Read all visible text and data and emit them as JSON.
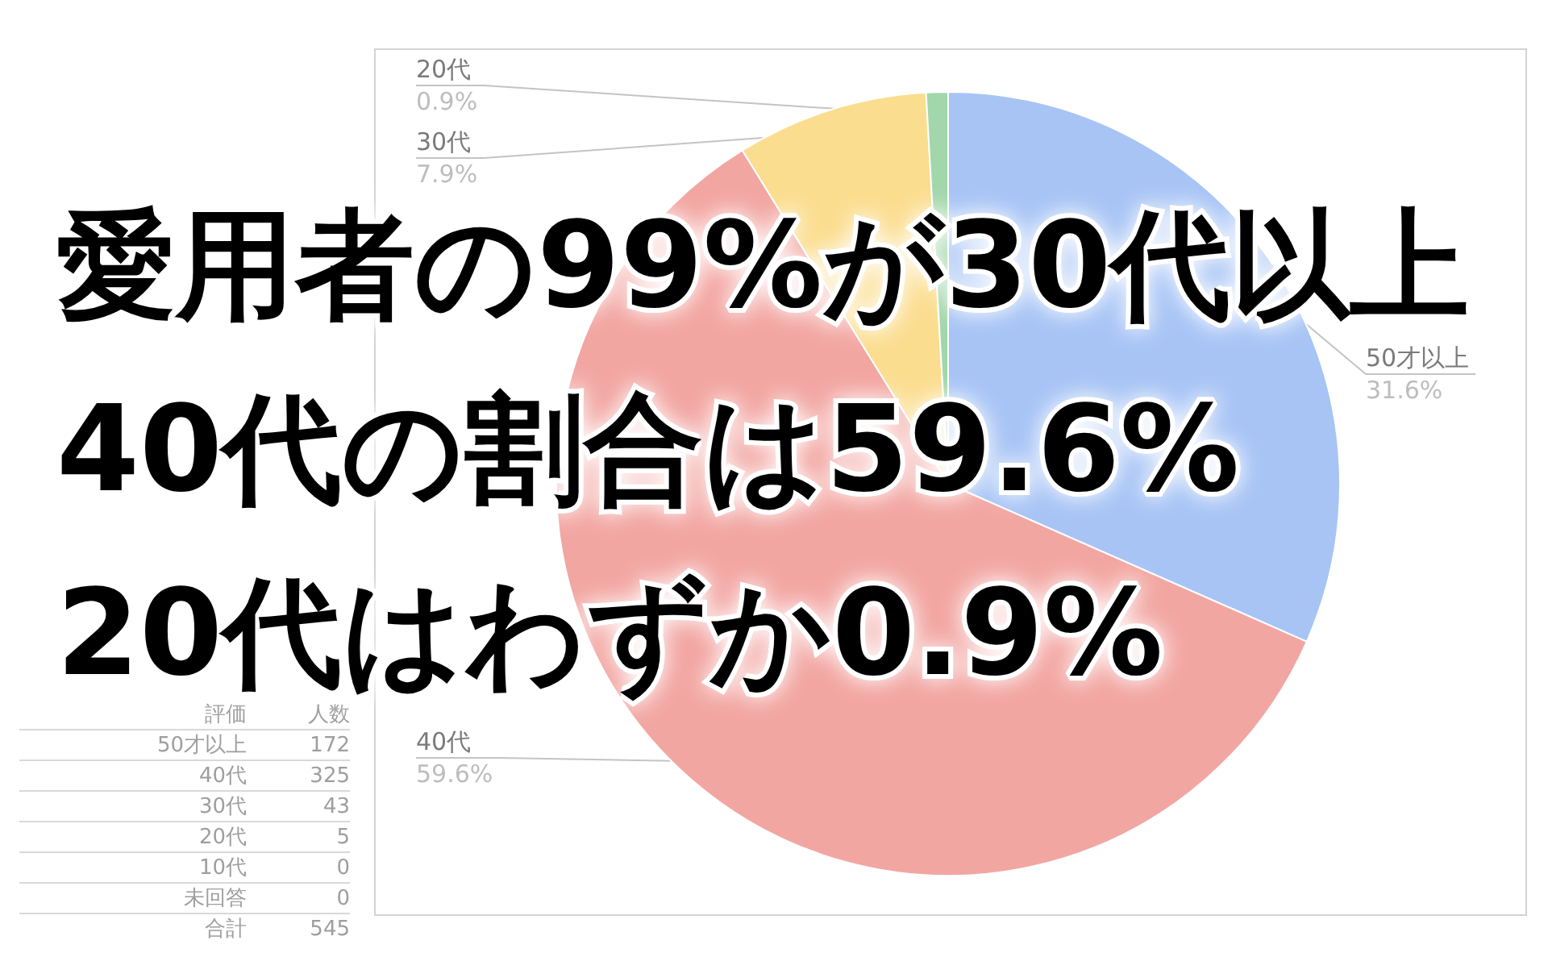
{
  "chart_data": {
    "type": "pie",
    "title": "愛用者の99%が30代以上\n40代の割合は59.6%\n20代はわずか0.9%",
    "categories": [
      "50才以上",
      "40代",
      "30代",
      "20代"
    ],
    "values": [
      31.6,
      59.6,
      7.9,
      0.9
    ],
    "colors": [
      "#a7c4f5",
      "#f2a6a2",
      "#fbdd8f",
      "#a2d6ab"
    ],
    "value_labels": [
      "31.6%",
      "59.6%",
      "7.9%",
      "0.9%"
    ],
    "annotations": [
      "評価",
      "人数",
      "50才以上",
      "172",
      "40代",
      "325",
      "30代",
      "43",
      "20代",
      "5",
      "10代",
      "0",
      "未回答",
      "0",
      "合計",
      "545"
    ]
  }
}
